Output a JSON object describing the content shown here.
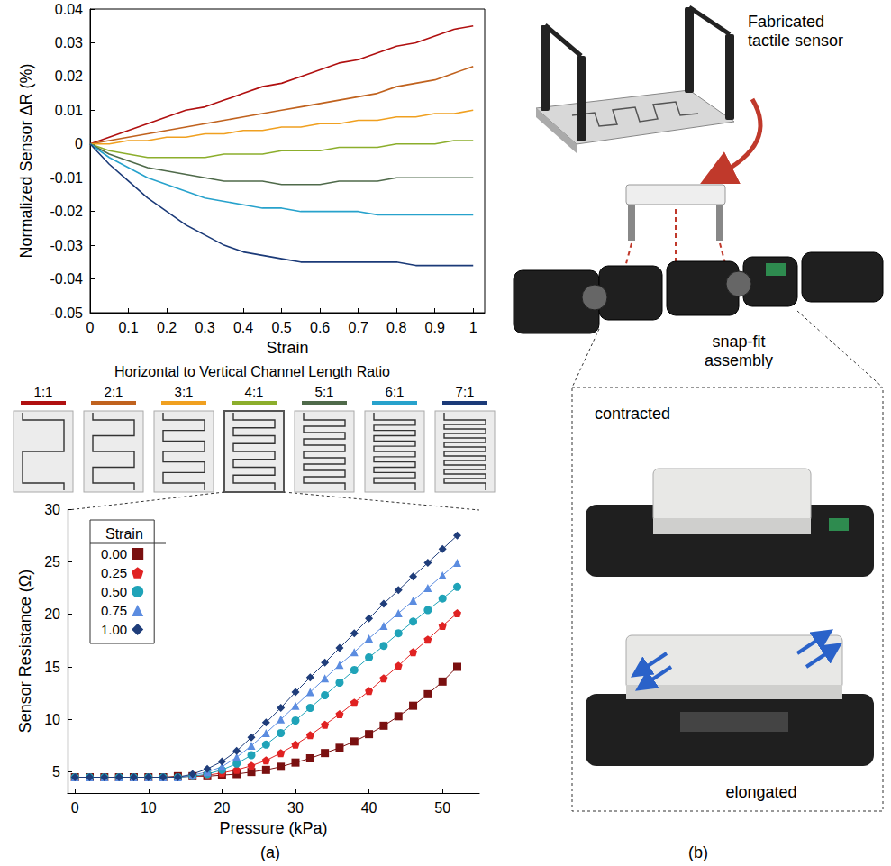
{
  "panel_labels": [
    "(a)",
    "(b)"
  ],
  "chart_data": [
    {
      "type": "line",
      "x_label": "Strain",
      "y_label": "Normalized Sensor ΔR (%)",
      "legend_title": "Horizontal to Vertical Channel Length Ratio",
      "grid": false,
      "xlim": [
        0,
        1.03
      ],
      "xticks": [
        0,
        0.1,
        0.2,
        0.3,
        0.4,
        0.5,
        0.6,
        0.7,
        0.8,
        0.9,
        1
      ],
      "ylim": [
        -0.05,
        0.04
      ],
      "yticks": [
        -0.05,
        -0.04,
        -0.03,
        -0.02,
        -0.01,
        0,
        0.01,
        0.02,
        0.03,
        0.04
      ],
      "x": [
        0,
        0.05,
        0.1,
        0.15,
        0.2,
        0.25,
        0.3,
        0.35,
        0.4,
        0.45,
        0.5,
        0.55,
        0.6,
        0.65,
        0.7,
        0.75,
        0.8,
        0.85,
        0.9,
        0.95,
        1
      ],
      "series": [
        {
          "name": "1:1",
          "color": "#b01010",
          "values": [
            0,
            0.002,
            0.004,
            0.006,
            0.008,
            0.01,
            0.011,
            0.013,
            0.015,
            0.017,
            0.018,
            0.02,
            0.022,
            0.024,
            0.025,
            0.027,
            0.029,
            0.03,
            0.032,
            0.034,
            0.035
          ]
        },
        {
          "name": "2:1",
          "color": "#c0621e",
          "values": [
            0,
            0.001,
            0.002,
            0.003,
            0.004,
            0.005,
            0.006,
            0.007,
            0.008,
            0.009,
            0.01,
            0.011,
            0.012,
            0.013,
            0.014,
            0.015,
            0.017,
            0.018,
            0.019,
            0.021,
            0.023
          ]
        },
        {
          "name": "3:1",
          "color": "#f0a020",
          "values": [
            0,
            0.0,
            0.001,
            0.001,
            0.002,
            0.002,
            0.003,
            0.003,
            0.004,
            0.004,
            0.005,
            0.005,
            0.006,
            0.006,
            0.007,
            0.007,
            0.008,
            0.008,
            0.009,
            0.009,
            0.01
          ]
        },
        {
          "name": "4:1",
          "color": "#8cae2c",
          "values": [
            0,
            -0.002,
            -0.003,
            -0.004,
            -0.004,
            -0.004,
            -0.004,
            -0.003,
            -0.003,
            -0.003,
            -0.002,
            -0.002,
            -0.002,
            -0.001,
            -0.001,
            -0.001,
            0.0,
            0.0,
            0.0,
            0.001,
            0.001
          ]
        },
        {
          "name": "5:1",
          "color": "#4f6a4a",
          "values": [
            0,
            -0.003,
            -0.005,
            -0.007,
            -0.008,
            -0.009,
            -0.01,
            -0.011,
            -0.011,
            -0.011,
            -0.012,
            -0.012,
            -0.012,
            -0.011,
            -0.011,
            -0.011,
            -0.01,
            -0.01,
            -0.01,
            -0.01,
            -0.01
          ]
        },
        {
          "name": "6:1",
          "color": "#27a2cc",
          "values": [
            0,
            -0.004,
            -0.007,
            -0.01,
            -0.012,
            -0.014,
            -0.016,
            -0.017,
            -0.018,
            -0.019,
            -0.019,
            -0.02,
            -0.02,
            -0.02,
            -0.02,
            -0.021,
            -0.021,
            -0.021,
            -0.021,
            -0.021,
            -0.021
          ]
        },
        {
          "name": "7:1",
          "color": "#1b3a78",
          "values": [
            0,
            -0.006,
            -0.011,
            -0.016,
            -0.02,
            -0.024,
            -0.027,
            -0.03,
            -0.032,
            -0.033,
            -0.034,
            -0.035,
            -0.035,
            -0.035,
            -0.035,
            -0.035,
            -0.035,
            -0.036,
            -0.036,
            -0.036,
            -0.036
          ]
        }
      ]
    },
    {
      "type": "line",
      "x_label": "Pressure (kPa)",
      "y_label": "Sensor Resistance (Ω)",
      "legend_title": "Strain",
      "legend": "top-left",
      "grid": false,
      "xlim": [
        -1,
        55
      ],
      "xticks": [
        0,
        10,
        20,
        30,
        40,
        50
      ],
      "ylim": [
        3,
        30
      ],
      "yticks": [
        5,
        10,
        15,
        20,
        25,
        30
      ],
      "x": [
        0,
        2,
        4,
        6,
        8,
        10,
        12,
        14,
        16,
        18,
        20,
        22,
        24,
        26,
        28,
        30,
        32,
        34,
        36,
        38,
        40,
        42,
        44,
        46,
        48,
        50,
        52
      ],
      "series": [
        {
          "name": "0.00",
          "color": "#7a1010",
          "marker": "square",
          "values": [
            4.5,
            4.5,
            4.5,
            4.5,
            4.5,
            4.5,
            4.5,
            4.6,
            4.6,
            4.6,
            4.7,
            4.8,
            5.0,
            5.2,
            5.5,
            5.9,
            6.3,
            6.8,
            7.3,
            7.9,
            8.6,
            9.4,
            10.3,
            11.3,
            12.4,
            13.6,
            15.0
          ]
        },
        {
          "name": "0.25",
          "color": "#e02222",
          "marker": "pentagon",
          "values": [
            4.5,
            4.5,
            4.5,
            4.5,
            4.5,
            4.5,
            4.5,
            4.5,
            4.6,
            4.7,
            4.9,
            5.2,
            5.6,
            6.1,
            6.8,
            7.6,
            8.5,
            9.5,
            10.5,
            11.6,
            12.7,
            13.9,
            15.1,
            16.4,
            17.6,
            18.9,
            20.1
          ]
        },
        {
          "name": "0.50",
          "color": "#1fa3b8",
          "marker": "circle",
          "values": [
            4.5,
            4.5,
            4.5,
            4.5,
            4.5,
            4.5,
            4.5,
            4.5,
            4.6,
            4.8,
            5.2,
            5.8,
            6.6,
            7.6,
            8.7,
            9.9,
            11.1,
            12.3,
            13.5,
            14.7,
            15.9,
            17.0,
            18.2,
            19.3,
            20.4,
            21.5,
            22.6
          ]
        },
        {
          "name": "0.75",
          "color": "#5b8ce0",
          "marker": "triangle",
          "values": [
            4.5,
            4.5,
            4.5,
            4.5,
            4.5,
            4.5,
            4.5,
            4.5,
            4.7,
            5.0,
            5.5,
            6.4,
            7.5,
            8.7,
            10.0,
            11.3,
            12.6,
            13.9,
            15.2,
            16.4,
            17.7,
            18.9,
            20.1,
            21.3,
            22.5,
            23.7,
            24.9
          ]
        },
        {
          "name": "1.00",
          "color": "#1f3d7a",
          "marker": "diamond",
          "values": [
            4.5,
            4.5,
            4.5,
            4.5,
            4.5,
            4.5,
            4.5,
            4.5,
            4.8,
            5.3,
            6.0,
            7.0,
            8.3,
            9.7,
            11.1,
            12.6,
            14.0,
            15.4,
            16.8,
            18.2,
            19.6,
            21.0,
            22.3,
            23.6,
            24.9,
            26.2,
            27.5
          ]
        }
      ]
    }
  ],
  "panel_b": {
    "sensor_label": "Fabricated tactile sensor",
    "assembly_label": "snap-fit assembly",
    "state_labels": [
      "contracted",
      "elongated"
    ]
  }
}
